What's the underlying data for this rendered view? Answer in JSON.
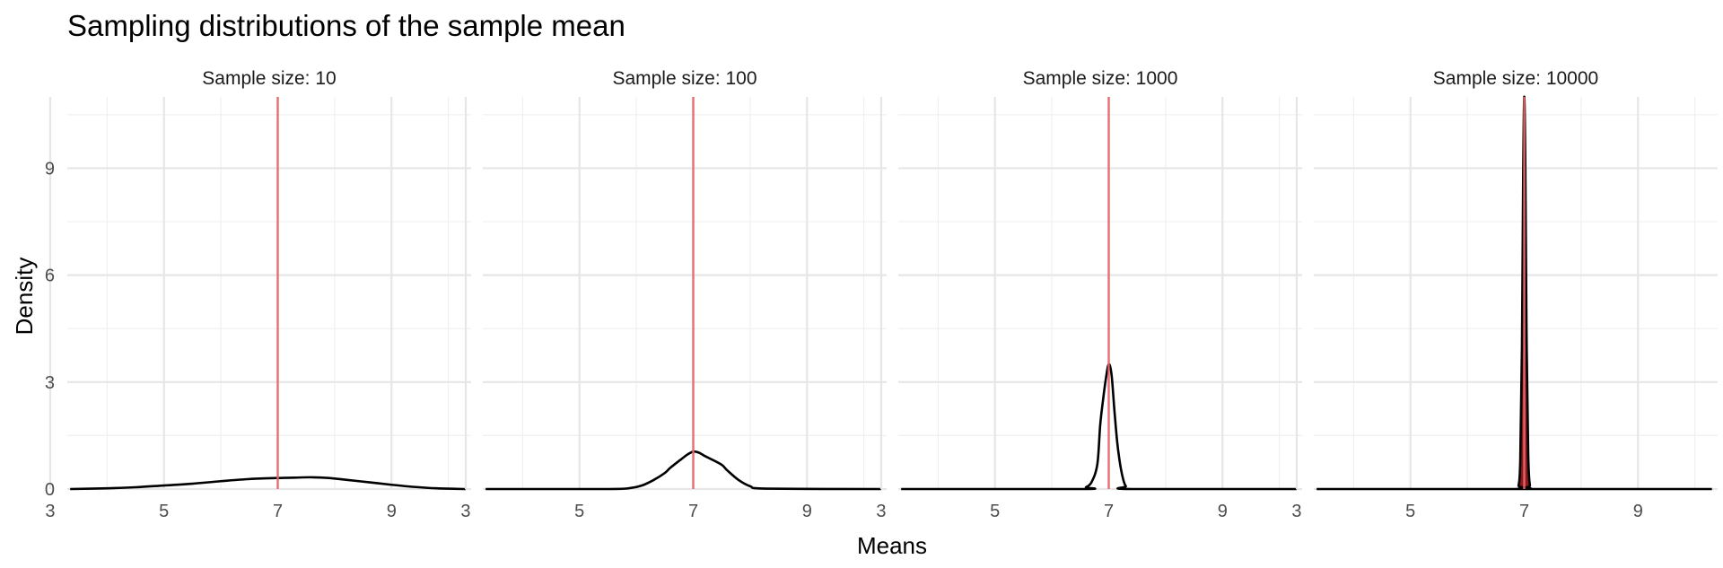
{
  "chart_data": {
    "type": "line",
    "title": "Sampling distributions of the sample mean",
    "xlabel": "Means",
    "ylabel": "Density",
    "xlim": [
      3.3,
      10.4
    ],
    "ylim": [
      0,
      11.0
    ],
    "x_ticks": [
      3,
      5,
      7,
      9
    ],
    "y_ticks": [
      0,
      3,
      6,
      9
    ],
    "x_tick_labels": [
      "3",
      "5",
      "7",
      "9"
    ],
    "y_tick_labels": [
      "0",
      "3",
      "6",
      "9"
    ],
    "reference_line": {
      "x": 7,
      "color": "#e8676b"
    },
    "line_color": "#000000",
    "peak_fill_color": "#8b1a1a",
    "grid": true,
    "panels": [
      {
        "strip_label": "Sample size: 10",
        "series": [
          {
            "x": [
              3.35,
              4.0,
              4.5,
              5.0,
              5.5,
              6.0,
              6.5,
              7.0,
              7.3,
              7.6,
              7.9,
              8.2,
              8.6,
              9.0,
              9.4,
              9.8,
              10.3
            ],
            "y": [
              0.0,
              0.02,
              0.05,
              0.1,
              0.15,
              0.22,
              0.28,
              0.31,
              0.32,
              0.33,
              0.31,
              0.26,
              0.19,
              0.12,
              0.06,
              0.02,
              0.0
            ]
          }
        ]
      },
      {
        "strip_label": "Sample size: 100",
        "series": [
          {
            "x": [
              3.35,
              5.5,
              5.9,
              6.1,
              6.3,
              6.5,
              6.6,
              6.8,
              6.9,
              7.0,
              7.1,
              7.2,
              7.3,
              7.5,
              7.6,
              7.8,
              8.0,
              8.3,
              10.3
            ],
            "y": [
              0.0,
              0.0,
              0.03,
              0.1,
              0.25,
              0.45,
              0.6,
              0.85,
              0.97,
              1.05,
              1.02,
              0.93,
              0.85,
              0.68,
              0.52,
              0.25,
              0.08,
              0.01,
              0.0
            ]
          }
        ]
      },
      {
        "strip_label": "Sample size: 1000",
        "series": [
          {
            "x": [
              3.35,
              6.5,
              6.6,
              6.7,
              6.8,
              6.85,
              6.9,
              6.95,
              7.0,
              7.05,
              7.1,
              7.15,
              7.2,
              7.25,
              7.3,
              7.4,
              10.3
            ],
            "y": [
              0.0,
              0.0,
              0.05,
              0.2,
              0.7,
              1.8,
              2.5,
              3.1,
              3.5,
              3.2,
              2.2,
              1.3,
              0.7,
              0.3,
              0.08,
              0.0,
              0.0
            ]
          }
        ]
      },
      {
        "strip_label": "Sample size: 10000",
        "series": [
          {
            "x": [
              3.35,
              6.85,
              6.9,
              6.93,
              6.96,
              6.98,
              7.0,
              7.02,
              7.04,
              7.07,
              7.1,
              7.15,
              10.3
            ],
            "y": [
              0.0,
              0.0,
              0.1,
              0.8,
              4.0,
              8.5,
              11.0,
              9.0,
              4.5,
              1.0,
              0.1,
              0.0,
              0.0
            ]
          }
        ]
      }
    ]
  }
}
